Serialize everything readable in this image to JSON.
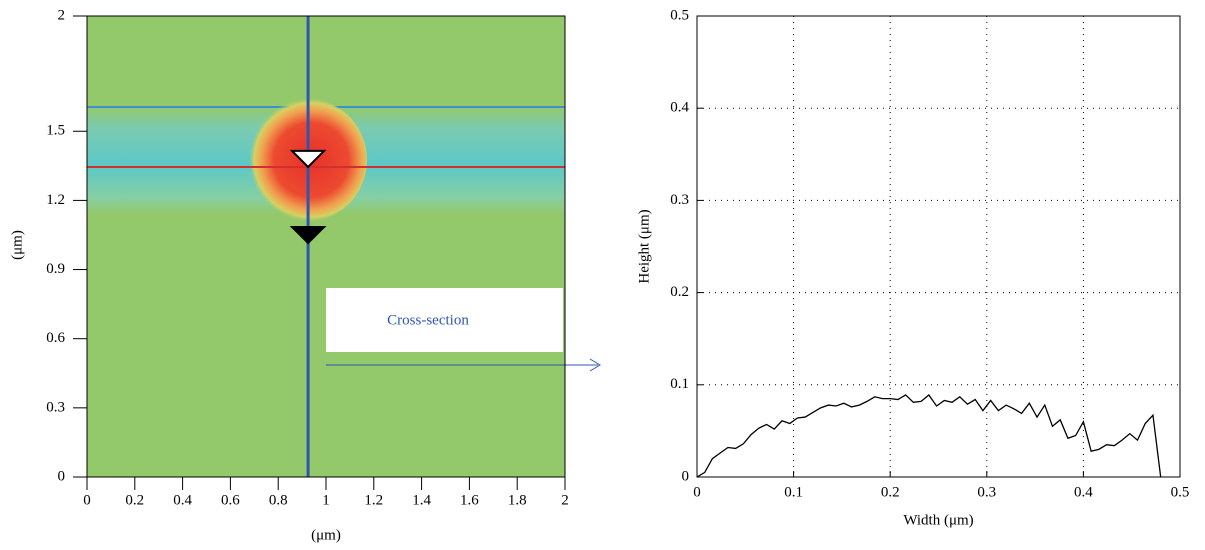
{
  "chart_data": [
    {
      "type": "image",
      "xlabel": "(μm)",
      "ylabel": "(μm)",
      "xlim": [
        0,
        2
      ],
      "xticks": [
        0,
        0.2,
        0.4,
        0.6,
        0.8,
        1,
        1.2,
        1.4,
        1.6,
        1.8,
        2
      ],
      "ylim": [
        0,
        2
      ],
      "yticks": [
        0,
        0.3,
        0.6,
        0.9,
        1.2,
        1.5,
        2
      ],
      "cursor_x": 0.925,
      "cursor_y": 1.345,
      "markers": [
        1.38,
        1.05
      ],
      "annotation": "Cross-section"
    },
    {
      "type": "line",
      "xlabel": "Width (μm)",
      "ylabel": "Height (μm)",
      "xlim": [
        0,
        0.5
      ],
      "xticks": [
        0,
        0.1,
        0.2,
        0.3,
        0.4,
        0.5
      ],
      "ylim": [
        0,
        0.5
      ],
      "yticks": [
        0,
        0.1,
        0.2,
        0.3,
        0.4,
        0.5
      ],
      "grid": true,
      "color": "#000000",
      "x": [
        0,
        0.008,
        0.016,
        0.024,
        0.032,
        0.04,
        0.048,
        0.056,
        0.064,
        0.072,
        0.08,
        0.088,
        0.096,
        0.104,
        0.112,
        0.12,
        0.128,
        0.136,
        0.144,
        0.152,
        0.16,
        0.168,
        0.176,
        0.184,
        0.192,
        0.2,
        0.208,
        0.216,
        0.224,
        0.232,
        0.24,
        0.248,
        0.256,
        0.264,
        0.272,
        0.28,
        0.288,
        0.296,
        0.304,
        0.312,
        0.32,
        0.328,
        0.336,
        0.344,
        0.352,
        0.36,
        0.368,
        0.376,
        0.384,
        0.392,
        0.4,
        0.408,
        0.416,
        0.424,
        0.432,
        0.44,
        0.448,
        0.456,
        0.464,
        0.472,
        0.48
      ],
      "values": [
        0,
        0.005,
        0.02,
        0.026,
        0.032,
        0.031,
        0.036,
        0.046,
        0.053,
        0.057,
        0.052,
        0.061,
        0.058,
        0.064,
        0.065,
        0.07,
        0.075,
        0.078,
        0.077,
        0.08,
        0.076,
        0.078,
        0.082,
        0.087,
        0.085,
        0.085,
        0.084,
        0.089,
        0.081,
        0.082,
        0.089,
        0.077,
        0.083,
        0.081,
        0.087,
        0.079,
        0.084,
        0.072,
        0.083,
        0.072,
        0.078,
        0.074,
        0.069,
        0.08,
        0.065,
        0.078,
        0.055,
        0.062,
        0.042,
        0.045,
        0.06,
        0.028,
        0.03,
        0.035,
        0.034,
        0.04,
        0.047,
        0.04,
        0.058,
        0.067,
        0
      ]
    }
  ]
}
